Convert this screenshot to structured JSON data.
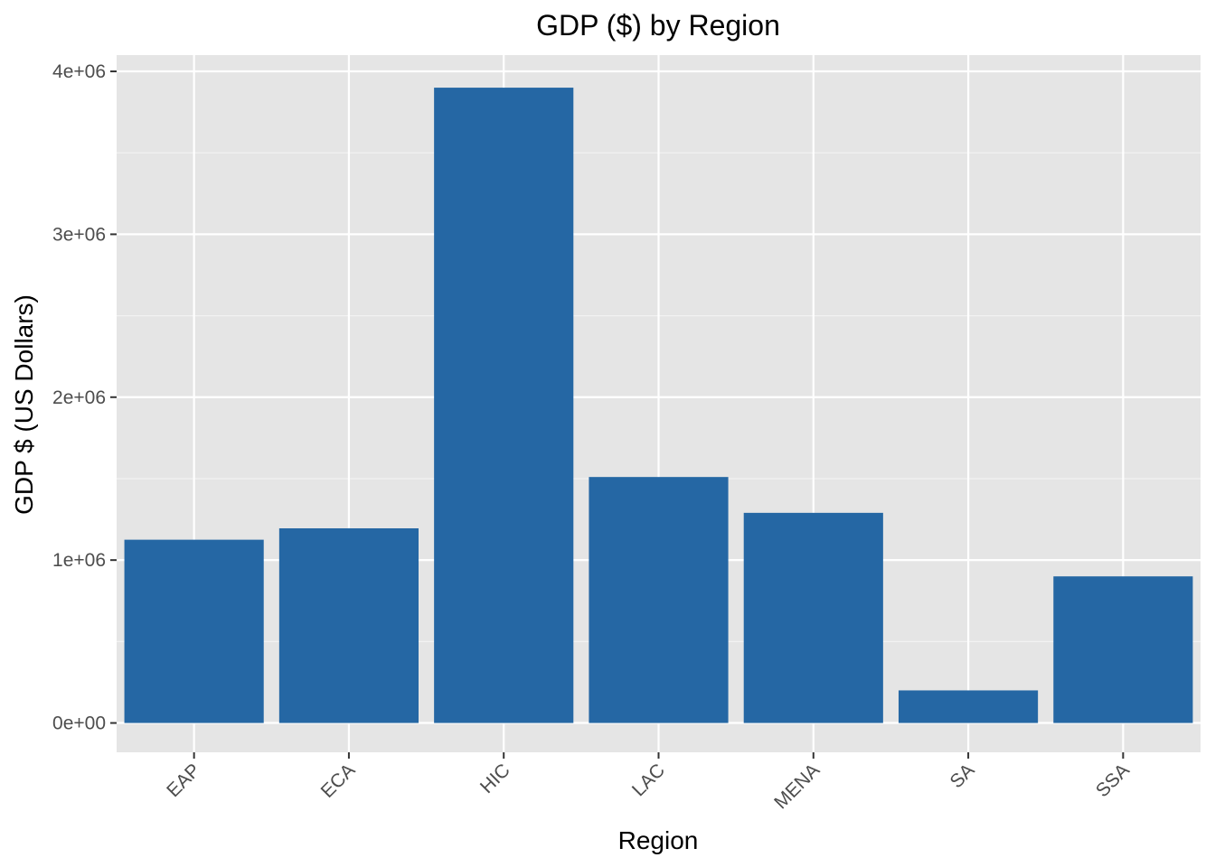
{
  "chart_data": {
    "type": "bar",
    "title": "GDP ($) by Region",
    "xlabel": "Region",
    "ylabel": "GDP $ (US Dollars)",
    "categories": [
      "EAP",
      "ECA",
      "HIC",
      "LAC",
      "MENA",
      "SA",
      "SSA"
    ],
    "values": [
      1125000,
      1195000,
      3900000,
      1510000,
      1290000,
      200000,
      900000
    ],
    "ylim": [
      -180000,
      4100000
    ],
    "yticks": [
      {
        "value": 0,
        "label": "0e+00"
      },
      {
        "value": 1000000,
        "label": "1e+06"
      },
      {
        "value": 2000000,
        "label": "2e+06"
      },
      {
        "value": 3000000,
        "label": "3e+06"
      },
      {
        "value": 4000000,
        "label": "4e+06"
      }
    ],
    "grid": true,
    "legend": "none",
    "colors": {
      "bar": "#2567a4",
      "panel": "#e5e5e5",
      "grid_major": "#ffffff",
      "grid_minor": "#f2f2f2",
      "tick": "#333333"
    }
  }
}
